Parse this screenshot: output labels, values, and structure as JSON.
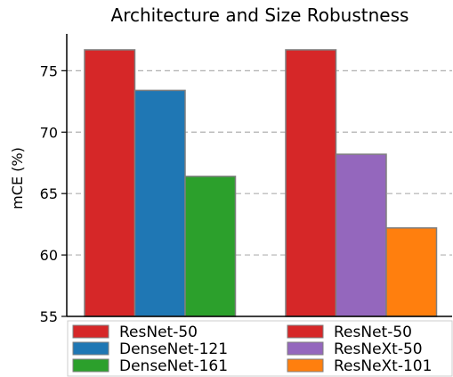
{
  "chart_data": {
    "type": "bar",
    "title": "Architecture and Size Robustness",
    "xlabel": "",
    "ylabel": "mCE (%)",
    "ylim": [
      55,
      78
    ],
    "yticks": [
      55,
      60,
      65,
      70,
      75
    ],
    "grid": "horizontal dashed",
    "groups": [
      {
        "bars": [
          {
            "name": "ResNet-50",
            "value": 76.7,
            "color": "#d62728"
          },
          {
            "name": "DenseNet-121",
            "value": 73.4,
            "color": "#1f77b4"
          },
          {
            "name": "DenseNet-161",
            "value": 66.4,
            "color": "#2ca02c"
          }
        ]
      },
      {
        "bars": [
          {
            "name": "ResNet-50",
            "value": 76.7,
            "color": "#d62728"
          },
          {
            "name": "ResNeXt-50",
            "value": 68.2,
            "color": "#9467bd"
          },
          {
            "name": "ResNeXt-101",
            "value": 62.2,
            "color": "#ff7f0e"
          }
        ]
      }
    ],
    "legend": {
      "placement": "bottom, below axis",
      "columns": [
        [
          {
            "label": "ResNet-50",
            "color": "#d62728"
          },
          {
            "label": "DenseNet-121",
            "color": "#1f77b4"
          },
          {
            "label": "DenseNet-161",
            "color": "#2ca02c"
          }
        ],
        [
          {
            "label": "ResNet-50",
            "color": "#d62728"
          },
          {
            "label": "ResNeXt-50",
            "color": "#9467bd"
          },
          {
            "label": "ResNeXt-101",
            "color": "#ff7f0e"
          }
        ]
      ]
    }
  }
}
